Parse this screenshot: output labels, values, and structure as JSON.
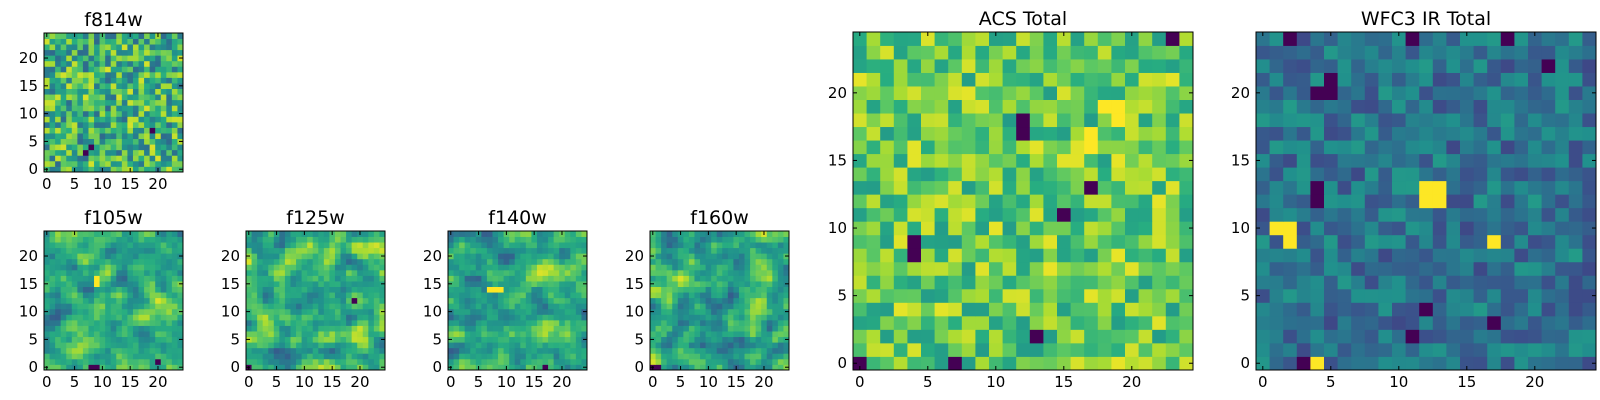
{
  "chart_data": [
    {
      "type": "heatmap",
      "title": "f814w",
      "size": 25,
      "colormap": "viridis",
      "level_range": [
        0.35,
        0.95
      ],
      "vmin": 0,
      "vmax": 1,
      "seed": 814,
      "smooth": 0,
      "hot": [],
      "dark": [
        [
          4,
          8
        ],
        [
          3,
          7
        ],
        [
          7,
          19
        ]
      ],
      "x_ticks": [
        0,
        5,
        10,
        15,
        20
      ],
      "y_ticks": [
        0,
        5,
        10,
        15,
        20
      ],
      "xlim": [
        -0.5,
        24.5
      ],
      "ylim": [
        -0.5,
        24.5
      ]
    },
    {
      "type": "heatmap",
      "title": "f105w",
      "size": 25,
      "colormap": "viridis",
      "level_range": [
        0.3,
        0.95
      ],
      "vmin": 0,
      "vmax": 1,
      "seed": 105,
      "smooth": 1,
      "hot": [
        [
          15,
          9
        ],
        [
          16,
          9
        ]
      ],
      "dark": [
        [
          0,
          8
        ],
        [
          0,
          9
        ],
        [
          1,
          20
        ]
      ],
      "x_ticks": [
        0,
        5,
        10,
        15,
        20
      ],
      "y_ticks": [
        0,
        5,
        10,
        15,
        20
      ],
      "xlim": [
        -0.5,
        24.5
      ],
      "ylim": [
        -0.5,
        24.5
      ]
    },
    {
      "type": "heatmap",
      "title": "f125w",
      "size": 25,
      "colormap": "viridis",
      "level_range": [
        0.3,
        0.95
      ],
      "vmin": 0,
      "vmax": 1,
      "seed": 125,
      "smooth": 1,
      "hot": [],
      "dark": [
        [
          0,
          0
        ],
        [
          12,
          19
        ]
      ],
      "x_ticks": [
        0,
        5,
        10,
        15,
        20
      ],
      "y_ticks": [
        0,
        5,
        10,
        15,
        20
      ],
      "xlim": [
        -0.5,
        24.5
      ],
      "ylim": [
        -0.5,
        24.5
      ]
    },
    {
      "type": "heatmap",
      "title": "f140w",
      "size": 25,
      "colormap": "viridis",
      "level_range": [
        0.3,
        0.95
      ],
      "vmin": 0,
      "vmax": 1,
      "seed": 140,
      "smooth": 1,
      "hot": [
        [
          14,
          7
        ],
        [
          14,
          8
        ],
        [
          14,
          9
        ]
      ],
      "dark": [
        [
          0,
          17
        ]
      ],
      "x_ticks": [
        0,
        5,
        10,
        15,
        20
      ],
      "y_ticks": [
        0,
        5,
        10,
        15,
        20
      ],
      "xlim": [
        -0.5,
        24.5
      ],
      "ylim": [
        -0.5,
        24.5
      ]
    },
    {
      "type": "heatmap",
      "title": "f160w",
      "size": 25,
      "colormap": "viridis",
      "level_range": [
        0.3,
        0.95
      ],
      "vmin": 0,
      "vmax": 1,
      "seed": 160,
      "smooth": 1,
      "hot": [],
      "dark": [
        [
          0,
          0
        ],
        [
          0,
          1
        ]
      ],
      "x_ticks": [
        0,
        5,
        10,
        15,
        20
      ],
      "y_ticks": [
        0,
        5,
        10,
        15,
        20
      ],
      "xlim": [
        -0.5,
        24.5
      ],
      "ylim": [
        -0.5,
        24.5
      ]
    },
    {
      "type": "heatmap",
      "title": "ACS Total",
      "size": 25,
      "colormap": "viridis",
      "level_range": [
        0.55,
        0.97
      ],
      "vmin": 0,
      "vmax": 1,
      "seed": 7001,
      "smooth": 0,
      "hot": [
        [
          19,
          18
        ],
        [
          19,
          19
        ],
        [
          18,
          19
        ],
        [
          16,
          17
        ],
        [
          17,
          17
        ]
      ],
      "dark": [
        [
          24,
          23
        ],
        [
          9,
          4
        ],
        [
          8,
          4
        ],
        [
          13,
          17
        ],
        [
          11,
          15
        ],
        [
          2,
          13
        ],
        [
          0,
          7
        ],
        [
          0,
          0
        ],
        [
          18,
          12
        ],
        [
          17,
          12
        ]
      ],
      "x_ticks": [
        0,
        5,
        10,
        15,
        20
      ],
      "y_ticks": [
        0,
        5,
        10,
        15,
        20
      ],
      "xlim": [
        -0.5,
        24.5
      ],
      "ylim": [
        -0.5,
        24.5
      ]
    },
    {
      "type": "heatmap",
      "title": "WFC3 IR Total",
      "size": 25,
      "colormap": "viridis",
      "level_range": [
        0.22,
        0.55
      ],
      "vmin": 0,
      "vmax": 1,
      "seed": 7002,
      "smooth": 0,
      "hot": [
        [
          12,
          12
        ],
        [
          12,
          13
        ],
        [
          13,
          12
        ],
        [
          13,
          13
        ],
        [
          10,
          1
        ],
        [
          10,
          2
        ],
        [
          9,
          2
        ],
        [
          9,
          17
        ],
        [
          0,
          4
        ]
      ],
      "dark": [
        [
          24,
          2
        ],
        [
          24,
          11
        ],
        [
          24,
          18
        ],
        [
          21,
          5
        ],
        [
          20,
          4
        ],
        [
          20,
          5
        ],
        [
          22,
          21
        ],
        [
          13,
          4
        ],
        [
          12,
          4
        ],
        [
          2,
          11
        ],
        [
          0,
          3
        ],
        [
          4,
          12
        ],
        [
          3,
          17
        ]
      ],
      "x_ticks": [
        0,
        5,
        10,
        15,
        20
      ],
      "y_ticks": [
        0,
        5,
        10,
        15,
        20
      ],
      "xlim": [
        -0.5,
        24.5
      ],
      "ylim": [
        -0.5,
        24.5
      ]
    }
  ]
}
